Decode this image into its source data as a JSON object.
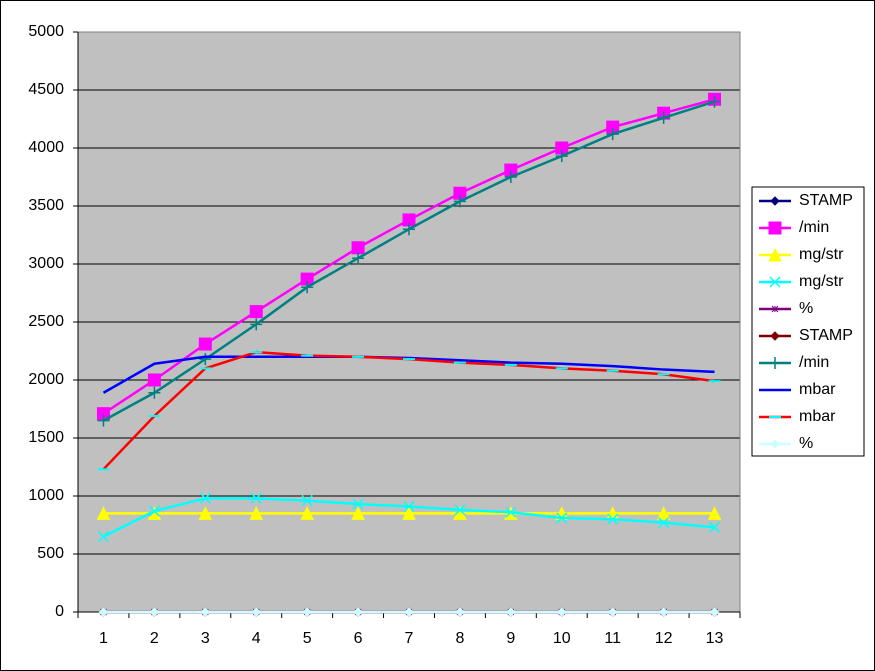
{
  "chart_data": {
    "type": "line",
    "categories": [
      1,
      2,
      3,
      4,
      5,
      6,
      7,
      8,
      9,
      10,
      11,
      12,
      13
    ],
    "ylim": [
      0,
      5000
    ],
    "yticks": [
      0,
      500,
      1000,
      1500,
      2000,
      2500,
      3000,
      3500,
      4000,
      4500,
      5000
    ],
    "grid": true,
    "series": [
      {
        "name": "STAMP",
        "color": "#000080",
        "marker": "diamond",
        "values": [
          0,
          0,
          0,
          0,
          0,
          0,
          0,
          0,
          0,
          0,
          0,
          0,
          0
        ]
      },
      {
        "name": "/min",
        "color": "#ff00ff",
        "marker": "square",
        "values": [
          1710,
          2000,
          2310,
          2590,
          2870,
          3140,
          3380,
          3610,
          3810,
          4000,
          4180,
          4300,
          4420
        ]
      },
      {
        "name": "mg/str",
        "color": "#ffff00",
        "marker": "triangle",
        "values": [
          850,
          850,
          850,
          850,
          850,
          850,
          850,
          850,
          850,
          850,
          850,
          850,
          850
        ]
      },
      {
        "name": "mg/str",
        "color": "#00ffff",
        "marker": "x",
        "values": [
          650,
          870,
          980,
          980,
          960,
          930,
          910,
          880,
          860,
          810,
          800,
          770,
          730
        ]
      },
      {
        "name": "%",
        "color": "#800080",
        "marker": "star",
        "values": [
          0,
          0,
          0,
          0,
          0,
          0,
          0,
          0,
          0,
          0,
          0,
          0,
          0
        ]
      },
      {
        "name": "STAMP",
        "color": "#800000",
        "marker": "diamond",
        "values": [
          0,
          0,
          0,
          0,
          0,
          0,
          0,
          0,
          0,
          0,
          0,
          0,
          0
        ]
      },
      {
        "name": "/min",
        "color": "#008080",
        "marker": "plus",
        "values": [
          1650,
          1890,
          2180,
          2480,
          2800,
          3050,
          3300,
          3540,
          3750,
          3930,
          4120,
          4260,
          4400
        ]
      },
      {
        "name": "mbar",
        "color": "#0000ff",
        "marker": "none",
        "values": [
          1890,
          2140,
          2200,
          2200,
          2200,
          2200,
          2190,
          2170,
          2150,
          2140,
          2120,
          2090,
          2070
        ]
      },
      {
        "name": "mbar",
        "color": "#ff0000",
        "marker": "dash",
        "values": [
          1230,
          1690,
          2100,
          2240,
          2210,
          2200,
          2180,
          2150,
          2130,
          2100,
          2080,
          2050,
          1990
        ]
      },
      {
        "name": "%",
        "color": "#ccffff",
        "marker": "diamond",
        "values": [
          0,
          0,
          0,
          0,
          0,
          0,
          0,
          0,
          0,
          0,
          0,
          0,
          0
        ]
      }
    ]
  }
}
